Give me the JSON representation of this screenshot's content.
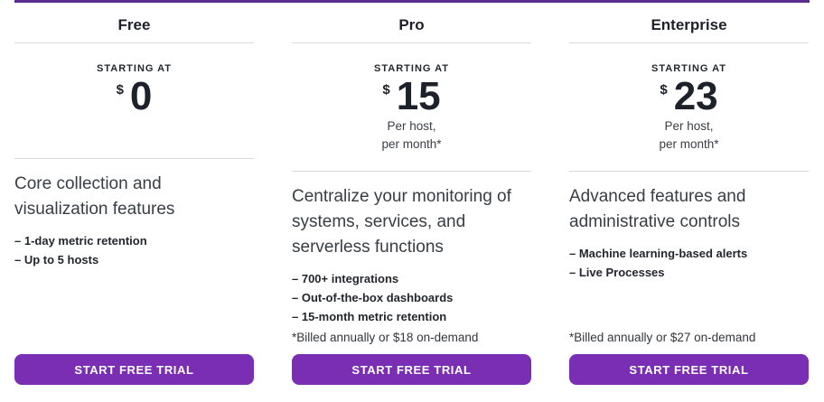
{
  "colors": {
    "accent_top_border": "#5b2c8f",
    "cta_background": "#7a2eb3",
    "cta_text": "#ffffff",
    "divider": "#d9d9db",
    "heading_text": "#1d2129"
  },
  "bullet_prefix": "–",
  "plans": [
    {
      "name": "Free",
      "starting_at_label": "STARTING AT",
      "currency": "$",
      "price": "0",
      "per_line1": "",
      "per_line2": "",
      "description": "Core collection and visualization features",
      "features": [
        "1-day metric retention",
        "Up to 5 hosts"
      ],
      "footnote": "",
      "cta_label": "START FREE TRIAL"
    },
    {
      "name": "Pro",
      "starting_at_label": "STARTING AT",
      "currency": "$",
      "price": "15",
      "per_line1": "Per host,",
      "per_line2": "per month*",
      "description": "Centralize your monitoring of systems, services, and serverless functions",
      "features": [
        "700+ integrations",
        "Out-of-the-box dashboards",
        "15-month metric retention"
      ],
      "footnote": "*Billed annually or $18 on-demand",
      "cta_label": "START FREE TRIAL"
    },
    {
      "name": "Enterprise",
      "starting_at_label": "STARTING AT",
      "currency": "$",
      "price": "23",
      "per_line1": "Per host,",
      "per_line2": "per month*",
      "description": "Advanced features and administrative controls",
      "features": [
        "Machine learning-based alerts",
        "Live Processes"
      ],
      "footnote": "*Billed annually or $27 on-demand",
      "cta_label": "START FREE TRIAL"
    }
  ]
}
